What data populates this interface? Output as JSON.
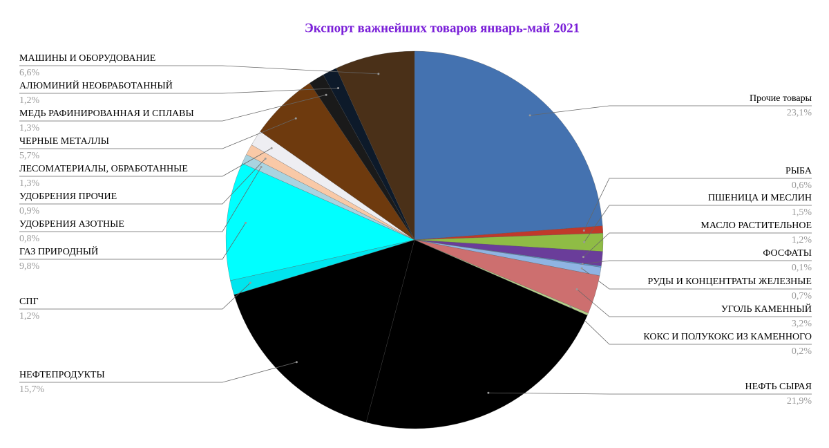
{
  "chart_data": {
    "type": "pie",
    "title": "Экспорт важнейших товаров январь-май 2021",
    "categories": [
      "Прочие товары",
      "РЫБА",
      "ПШЕНИЦА И МЕСЛИН",
      "МАСЛО РАСТИТЕЛЬНОЕ",
      "ФОСФАТЫ",
      "РУДЫ И КОНЦЕНТРАТЫ ЖЕЛЕЗНЫЕ",
      "УГОЛЬ КАМЕННЫЙ",
      "КОКС И ПОЛУКОКС ИЗ КАМЕННОГО",
      "НЕФТЬ СЫРАЯ",
      "НЕФТЕПРОДУКТЫ",
      "СПГ",
      "ГАЗ ПРИРОДНЫЙ",
      "УДОБРЕНИЯ АЗОТНЫЕ",
      "УДОБРЕНИЯ ПРОЧИЕ",
      "ЛЕСОМАТЕРИАЛЫ, ОБРАБОТАННЫЕ",
      "ЧЕРНЫЕ МЕТАЛЛЫ",
      "МЕДЬ РАФИНИРОВАННАЯ И СПЛАВЫ",
      "АЛЮМИНИЙ НЕОБРАБОТАННЫЙ",
      "МАШИНЫ И ОБОРУДОВАНИЕ"
    ],
    "values": [
      23.1,
      0.6,
      1.5,
      1.2,
      0.1,
      0.7,
      3.2,
      0.2,
      21.9,
      15.7,
      1.2,
      9.8,
      0.8,
      0.9,
      1.3,
      5.7,
      1.3,
      1.2,
      6.6
    ],
    "value_labels": [
      "23,1%",
      "0,6%",
      "1,5%",
      "1,2%",
      "0,1%",
      "0,7%",
      "3,2%",
      "0,2%",
      "21,9%",
      "15,7%",
      "1,2%",
      "9,8%",
      "0,8%",
      "0,9%",
      "1,3%",
      "5,7%",
      "1,3%",
      "1,2%",
      "6,6%"
    ],
    "colors": [
      "#4472b0",
      "#c0392b",
      "#8fbc45",
      "#6a3d9a",
      "#5b9bd5",
      "#8fb4e3",
      "#cd6f6f",
      "#b5cf8a",
      "#000000",
      "#000000",
      "#00e5ee",
      "#00ffff",
      "#a9d3e0",
      "#f9c9a7",
      "#eeeef2",
      "#6e3a0e",
      "#1a1a1a",
      "#0d1a2a",
      "#4a3018"
    ]
  }
}
